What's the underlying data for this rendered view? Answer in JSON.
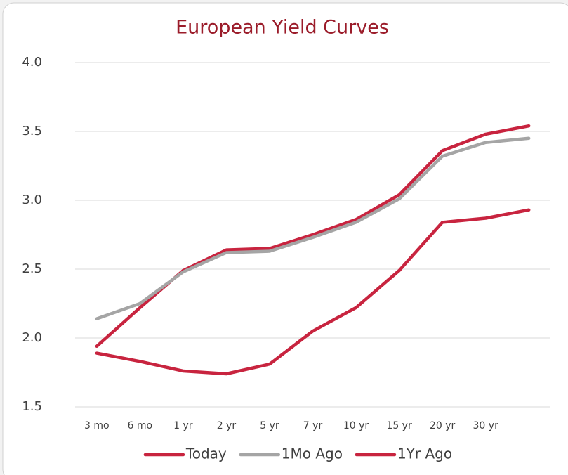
{
  "chart_data": {
    "type": "line",
    "title": "European Yield Curves",
    "categories": [
      "3 mo",
      "6 mo",
      "1 yr",
      "2 yr",
      "5 yr",
      "7 yr",
      "10 yr",
      "15 yr",
      "20 yr",
      "30 yr",
      null
    ],
    "series": [
      {
        "name": "Today",
        "color": "#c8243f",
        "values": [
          1.94,
          2.22,
          2.49,
          2.64,
          2.65,
          2.75,
          2.86,
          3.04,
          3.36,
          3.48,
          3.54
        ]
      },
      {
        "name": "1Mo Ago",
        "color": "#a5a5a5",
        "values": [
          2.14,
          2.25,
          2.48,
          2.62,
          2.63,
          2.73,
          2.84,
          3.01,
          3.32,
          3.42,
          3.45
        ]
      },
      {
        "name": "1Yr Ago",
        "color": "#c8243f",
        "values": [
          1.89,
          1.83,
          1.76,
          1.74,
          1.81,
          2.05,
          2.22,
          2.49,
          2.84,
          2.87,
          2.93
        ]
      }
    ],
    "ylim": [
      1.5,
      4.0
    ],
    "yticks": [
      1.5,
      {
        "value": 2.0,
        "label": "2.0"
      },
      2.5,
      {
        "value": 3.0,
        "label": "3.0"
      },
      3.5,
      {
        "value": 4.0,
        "label": "4.0"
      }
    ],
    "grid": true,
    "legend": "bottom"
  }
}
